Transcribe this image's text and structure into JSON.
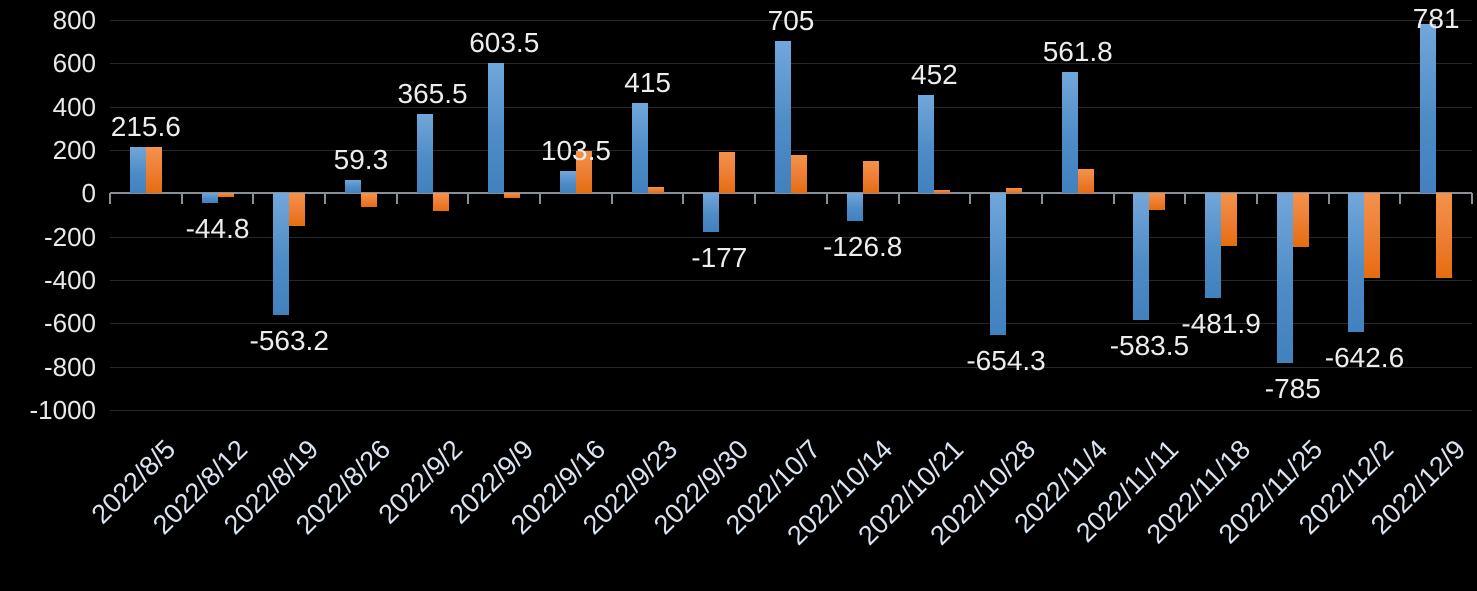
{
  "chart_data": {
    "type": "bar",
    "title": "",
    "xlabel": "",
    "ylabel": "",
    "legend": "none",
    "grid": true,
    "background": "#000000",
    "ylim": [
      -1000,
      800
    ],
    "yticks": [
      800,
      600,
      400,
      200,
      0,
      -200,
      -400,
      -600,
      -800,
      -1000
    ],
    "categories": [
      "2022/8/5",
      "2022/8/12",
      "2022/8/19",
      "2022/8/26",
      "2022/9/2",
      "2022/9/9",
      "2022/9/16",
      "2022/9/23",
      "2022/9/30",
      "2022/10/7",
      "2022/10/14",
      "2022/10/21",
      "2022/10/28",
      "2022/11/4",
      "2022/11/11",
      "2022/11/18",
      "2022/11/25",
      "2022/12/2",
      "2022/12/9"
    ],
    "series": [
      {
        "name": "blue-series",
        "color": "#4e8cc7",
        "values": [
          215.6,
          -44.8,
          -563.2,
          59.3,
          365.5,
          603.5,
          103.5,
          415,
          -177,
          705,
          -126.8,
          452,
          -654.3,
          561.8,
          -583.5,
          -481.9,
          -785,
          -642.6,
          781
        ],
        "data_labels": [
          "215.6",
          "-44.8",
          "-563.2",
          "59.3",
          "365.5",
          "603.5",
          "103.5",
          "415",
          "-177",
          "705",
          "-126.8",
          "452",
          "-654.3",
          "561.8",
          "-583.5",
          "-481.9",
          "-785",
          "-642.6",
          "781"
        ]
      },
      {
        "name": "orange-series",
        "color": "#ed7d31",
        "values": [
          215,
          -15,
          -150,
          -65,
          -80,
          -20,
          195,
          30,
          190,
          175,
          150,
          15,
          25,
          110,
          -75,
          -245,
          -250,
          -390,
          -390
        ],
        "data_labels": []
      }
    ]
  },
  "colors": {
    "background": "#000000",
    "gridline": "#272727",
    "axis_line": "#8a8f96",
    "y_label_text": "#e9e9e9",
    "data_label_text": "#ededed",
    "x_label_text": "#d9e4f0",
    "bar_blue": "#4e8cc7",
    "bar_orange": "#ed7d31"
  }
}
